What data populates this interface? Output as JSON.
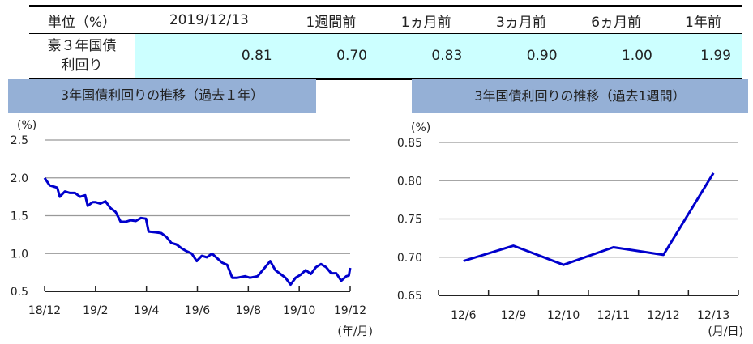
{
  "table": {
    "headers": [
      "単位（%）",
      "2019/12/13",
      "1週間前",
      "1ヵ月前",
      "3ヵ月前",
      "6ヵ月前",
      "1年前"
    ],
    "row_label_1": "豪３年国債",
    "row_label_2": "利回り",
    "values": [
      "0.81",
      "0.70",
      "0.83",
      "0.90",
      "1.00",
      "1.99"
    ]
  },
  "chart_data": [
    {
      "type": "line",
      "title": "3年国債利回りの推移（過去１年）",
      "ylabel": "(%)",
      "xlabel": "(年/月)",
      "ylim": [
        0.5,
        2.5
      ],
      "yticks": [
        "2.5",
        "2.0",
        "1.5",
        "1.0",
        "0.5"
      ],
      "xticks": [
        "18/12",
        "19/2",
        "19/4",
        "19/6",
        "19/8",
        "19/10",
        "19/12"
      ],
      "x_months": [
        0,
        0.2,
        0.5,
        0.6,
        0.8,
        1.0,
        1.2,
        1.4,
        1.6,
        1.7,
        1.9,
        2.0,
        2.2,
        2.4,
        2.6,
        2.8,
        3.0,
        3.2,
        3.4,
        3.6,
        3.8,
        4.0,
        4.1,
        4.4,
        4.6,
        4.8,
        5.0,
        5.2,
        5.4,
        5.6,
        5.8,
        6.0,
        6.2,
        6.4,
        6.6,
        6.8,
        7.0,
        7.2,
        7.4,
        7.6,
        7.9,
        8.1,
        8.4,
        8.7,
        8.9,
        9.1,
        9.3,
        9.5,
        9.7,
        9.9,
        10.1,
        10.3,
        10.5,
        10.7,
        10.9,
        11.1,
        11.3,
        11.5,
        11.7,
        11.9,
        12.0,
        12.05
      ],
      "values": [
        2.0,
        1.9,
        1.87,
        1.75,
        1.82,
        1.8,
        1.8,
        1.75,
        1.77,
        1.63,
        1.68,
        1.68,
        1.66,
        1.69,
        1.6,
        1.55,
        1.42,
        1.42,
        1.44,
        1.43,
        1.47,
        1.46,
        1.29,
        1.28,
        1.27,
        1.22,
        1.14,
        1.12,
        1.07,
        1.03,
        1.0,
        0.9,
        0.97,
        0.95,
        1.0,
        0.94,
        0.88,
        0.85,
        0.68,
        0.68,
        0.7,
        0.68,
        0.7,
        0.82,
        0.9,
        0.78,
        0.73,
        0.68,
        0.59,
        0.68,
        0.72,
        0.78,
        0.73,
        0.82,
        0.86,
        0.82,
        0.74,
        0.74,
        0.64,
        0.7,
        0.71,
        0.81
      ],
      "color": "#0000cc"
    },
    {
      "type": "line",
      "title": "3年国債利回りの推移（過去1週間）",
      "ylabel": "(%)",
      "xlabel": "(月/日)",
      "ylim": [
        0.65,
        0.85
      ],
      "yticks": [
        "0.85",
        "0.80",
        "0.75",
        "0.70",
        "0.65"
      ],
      "categories": [
        "12/6",
        "12/9",
        "12/10",
        "12/11",
        "12/12",
        "12/13"
      ],
      "values": [
        0.695,
        0.715,
        0.69,
        0.713,
        0.703,
        0.81
      ],
      "color": "#0000cc"
    }
  ]
}
